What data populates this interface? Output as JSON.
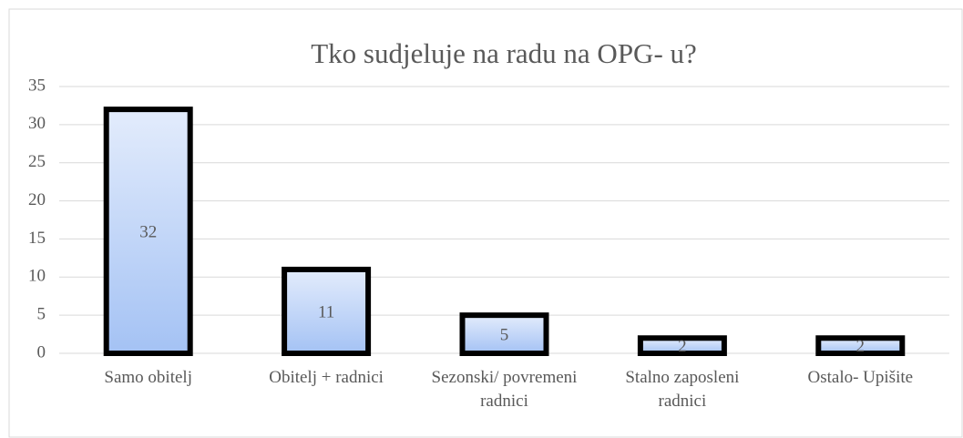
{
  "chart_data": {
    "type": "bar",
    "title": "Tko sudjeluje na radu na OPG- u?",
    "categories": [
      "Samo obitelj",
      "Obitelj + radnici",
      "Sezonski/ povremeni radnici",
      "Stalno zaposleni radnici",
      "Ostalo- Upišite"
    ],
    "values": [
      32,
      11,
      5,
      2,
      2
    ],
    "color": "#a4c2f4",
    "edge_color": "#000000",
    "ylim": [
      0,
      35
    ],
    "yticks": [
      0,
      5,
      10,
      15,
      20,
      25,
      30,
      35
    ],
    "grid": true
  }
}
